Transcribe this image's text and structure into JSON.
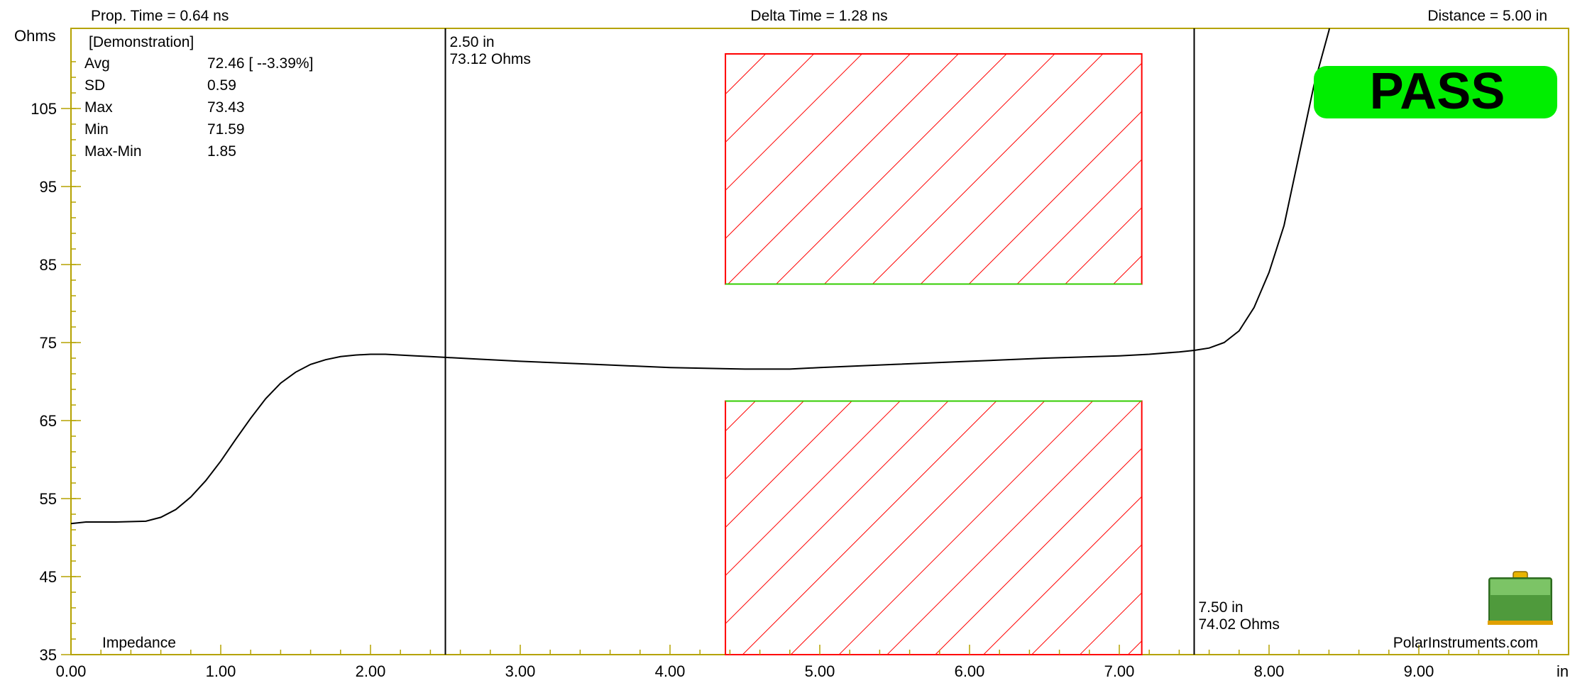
{
  "header": {
    "prop_time": "Prop. Time = 0.64 ns",
    "delta_time": "Delta Time = 1.28 ns",
    "distance": "Distance = 5.00 in"
  },
  "chart_data": {
    "type": "line",
    "x_unit": "in",
    "y_unit": "Ohms",
    "trace_label": "Impedance",
    "xlim": [
      0,
      10.0
    ],
    "ylim": [
      35,
      112
    ],
    "x_ticks": [
      "0.00",
      "1.00",
      "2.00",
      "3.00",
      "4.00",
      "5.00",
      "6.00",
      "7.00",
      "8.00",
      "9.00"
    ],
    "y_ticks": [
      "35",
      "45",
      "55",
      "65",
      "75",
      "85",
      "95",
      "105"
    ],
    "grid": false,
    "series": [
      {
        "x": [
          0.0,
          0.1,
          0.3,
          0.5,
          0.6,
          0.7,
          0.8,
          0.9,
          1.0,
          1.1,
          1.2,
          1.3,
          1.4,
          1.5,
          1.6,
          1.7,
          1.8,
          1.9,
          2.0,
          2.1,
          2.2,
          2.3,
          2.4,
          2.5,
          2.7,
          3.0,
          3.5,
          4.0,
          4.5,
          4.8,
          5.0,
          5.5,
          6.0,
          6.5,
          7.0,
          7.2,
          7.4,
          7.5,
          7.6,
          7.7,
          7.8,
          7.9,
          8.0,
          8.1,
          8.2,
          8.3,
          8.4,
          8.45
        ],
        "y": [
          51.8,
          52.0,
          52.0,
          52.1,
          52.6,
          53.6,
          55.2,
          57.3,
          59.8,
          62.6,
          65.3,
          67.8,
          69.8,
          71.2,
          72.2,
          72.8,
          73.2,
          73.4,
          73.5,
          73.5,
          73.4,
          73.3,
          73.2,
          73.1,
          72.9,
          72.6,
          72.2,
          71.8,
          71.6,
          71.6,
          71.8,
          72.2,
          72.6,
          73.0,
          73.3,
          73.5,
          73.8,
          74.0,
          74.3,
          75.0,
          76.5,
          79.5,
          84.0,
          90.0,
          99.0,
          108.0,
          115.0,
          120.0
        ]
      }
    ],
    "markers": [
      {
        "x": 2.5,
        "label_pos": "2.50 in",
        "label_val": "73.12 Ohms"
      },
      {
        "x": 7.5,
        "label_pos": "7.50 in",
        "label_val": "74.02 Ohms"
      }
    ],
    "limit_zones": [
      {
        "x1": 4.37,
        "x2": 7.15,
        "y1": 82.5,
        "y2": 112
      },
      {
        "x1": 4.37,
        "x2": 7.15,
        "y1": 35,
        "y2": 67.5
      }
    ],
    "colors": {
      "axis": "#b5a200",
      "zone": "#ff0000",
      "zone_edge": "#33cc00",
      "trace": "#000000",
      "pass": "#00ee00"
    }
  },
  "stats": {
    "title": "[Demonstration]",
    "rows": [
      {
        "name": "Avg",
        "value": "72.46 [ --3.39%]"
      },
      {
        "name": "SD",
        "value": "0.59"
      },
      {
        "name": "Max",
        "value": "73.43"
      },
      {
        "name": "Min",
        "value": "71.59"
      },
      {
        "name": "Max-Min",
        "value": "1.85"
      }
    ]
  },
  "status": {
    "result": "PASS"
  },
  "branding": {
    "site": "PolarInstruments.com",
    "icon": "briefcase-icon"
  }
}
